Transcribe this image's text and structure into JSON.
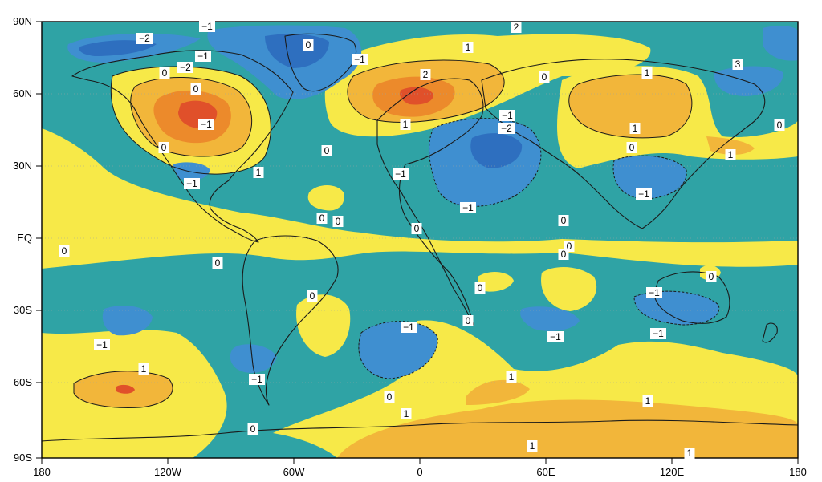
{
  "map": {
    "colors": {
      "below_minus2": "#2e6fbf",
      "minus2_to_minus1": "#3f8fd0",
      "minus1_to_0": "#2fa3a5",
      "zero_to_1": "#f7e948",
      "one_to_2": "#f2b63a",
      "two_to_3": "#ec8a2b",
      "above_3": "#e0502a",
      "coast": "#1a1a1a",
      "frame": "#000000"
    },
    "lat_labels": [
      "90N",
      "60N",
      "30N",
      "EQ",
      "30S",
      "60S",
      "90S"
    ],
    "lon_labels": [
      "180",
      "120W",
      "60W",
      "0",
      "60E",
      "120E",
      "180"
    ],
    "contour_labels": [
      {
        "text": "−1"
      },
      {
        "text": "−2"
      },
      {
        "text": "0"
      },
      {
        "text": "−1"
      },
      {
        "text": "−2"
      },
      {
        "text": "−1"
      },
      {
        "text": "1"
      },
      {
        "text": "2"
      },
      {
        "text": "3"
      },
      {
        "text": "0"
      },
      {
        "text": "0"
      },
      {
        "text": "−1"
      },
      {
        "text": "0"
      },
      {
        "text": "1"
      },
      {
        "text": "2"
      },
      {
        "text": "0"
      },
      {
        "text": "1"
      },
      {
        "text": "−1"
      },
      {
        "text": "−2"
      },
      {
        "text": "0"
      },
      {
        "text": "−1"
      },
      {
        "text": "−1"
      },
      {
        "text": "1"
      },
      {
        "text": "1"
      },
      {
        "text": "0"
      },
      {
        "text": "0"
      },
      {
        "text": "1"
      },
      {
        "text": "−1"
      },
      {
        "text": "0"
      },
      {
        "text": "0"
      },
      {
        "text": "0"
      },
      {
        "text": "0"
      },
      {
        "text": "0"
      },
      {
        "text": "0"
      },
      {
        "text": "0"
      },
      {
        "text": "0"
      },
      {
        "text": "−1"
      },
      {
        "text": "0"
      },
      {
        "text": "−1"
      },
      {
        "text": "0"
      },
      {
        "text": "−1"
      },
      {
        "text": "−1"
      },
      {
        "text": "0"
      },
      {
        "text": "−1"
      },
      {
        "text": "1"
      },
      {
        "text": "0"
      },
      {
        "text": "−1"
      },
      {
        "text": "1"
      },
      {
        "text": "1"
      },
      {
        "text": "1"
      },
      {
        "text": "0"
      },
      {
        "text": "1"
      },
      {
        "text": "1"
      },
      {
        "text": "0"
      },
      {
        "text": "−1"
      }
    ]
  }
}
